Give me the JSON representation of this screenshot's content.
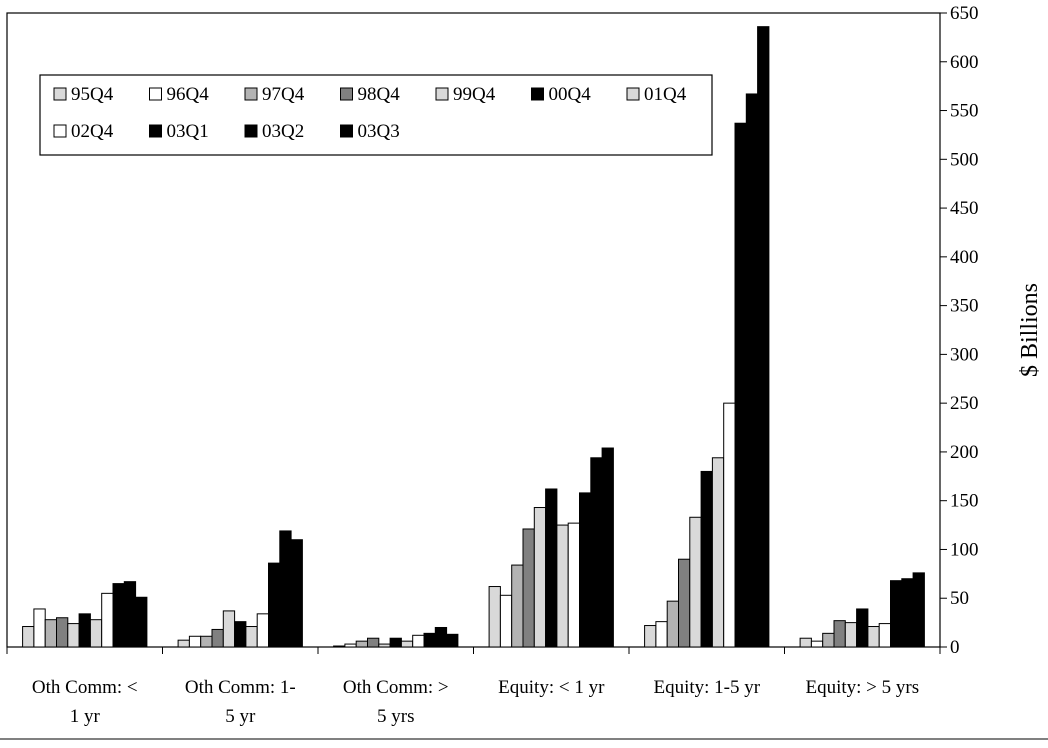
{
  "chart_data": {
    "type": "bar",
    "title": "",
    "xlabel": "",
    "ylabel": "$ Billions",
    "ylim": [
      0,
      650
    ],
    "y_ticks": [
      0,
      50,
      100,
      150,
      200,
      250,
      300,
      350,
      400,
      450,
      500,
      550,
      600,
      650
    ],
    "y_axis_side": "right",
    "grid": false,
    "legend_position": "top-left",
    "categories": [
      [
        "Oth Comm: <",
        "1 yr"
      ],
      [
        "Oth Comm: 1-",
        "5 yr"
      ],
      [
        "Oth Comm: >",
        "5 yrs"
      ],
      [
        "Equity: < 1 yr"
      ],
      [
        "Equity: 1-5 yr"
      ],
      [
        "Equity: > 5 yrs"
      ]
    ],
    "series": [
      {
        "name": "95Q4",
        "color": "#d9d9d9",
        "values": [
          21,
          7,
          1,
          62,
          22,
          9
        ]
      },
      {
        "name": "96Q4",
        "color": "#ffffff",
        "values": [
          39,
          11,
          3,
          53,
          26,
          6
        ]
      },
      {
        "name": "97Q4",
        "color": "#b3b3b3",
        "values": [
          28,
          11,
          6,
          84,
          47,
          14
        ]
      },
      {
        "name": "98Q4",
        "color": "#808080",
        "values": [
          30,
          18,
          9,
          121,
          90,
          27
        ]
      },
      {
        "name": "99Q4",
        "color": "#d9d9d9",
        "values": [
          24,
          37,
          3,
          143,
          133,
          25
        ]
      },
      {
        "name": "00Q4",
        "color": "#000000",
        "values": [
          34,
          26,
          9,
          162,
          180,
          39
        ]
      },
      {
        "name": "01Q4",
        "color": "#d9d9d9",
        "values": [
          28,
          21,
          6,
          125,
          194,
          21
        ]
      },
      {
        "name": "02Q4",
        "color": "#ffffff",
        "values": [
          55,
          34,
          12,
          127,
          250,
          24
        ]
      },
      {
        "name": "03Q1",
        "color": "#000000",
        "values": [
          65,
          86,
          14,
          158,
          537,
          68
        ]
      },
      {
        "name": "03Q2",
        "color": "#000000",
        "values": [
          67,
          119,
          20,
          194,
          567,
          70
        ]
      },
      {
        "name": "03Q3",
        "color": "#000000",
        "values": [
          51,
          110,
          13,
          204,
          636,
          76
        ]
      }
    ]
  }
}
